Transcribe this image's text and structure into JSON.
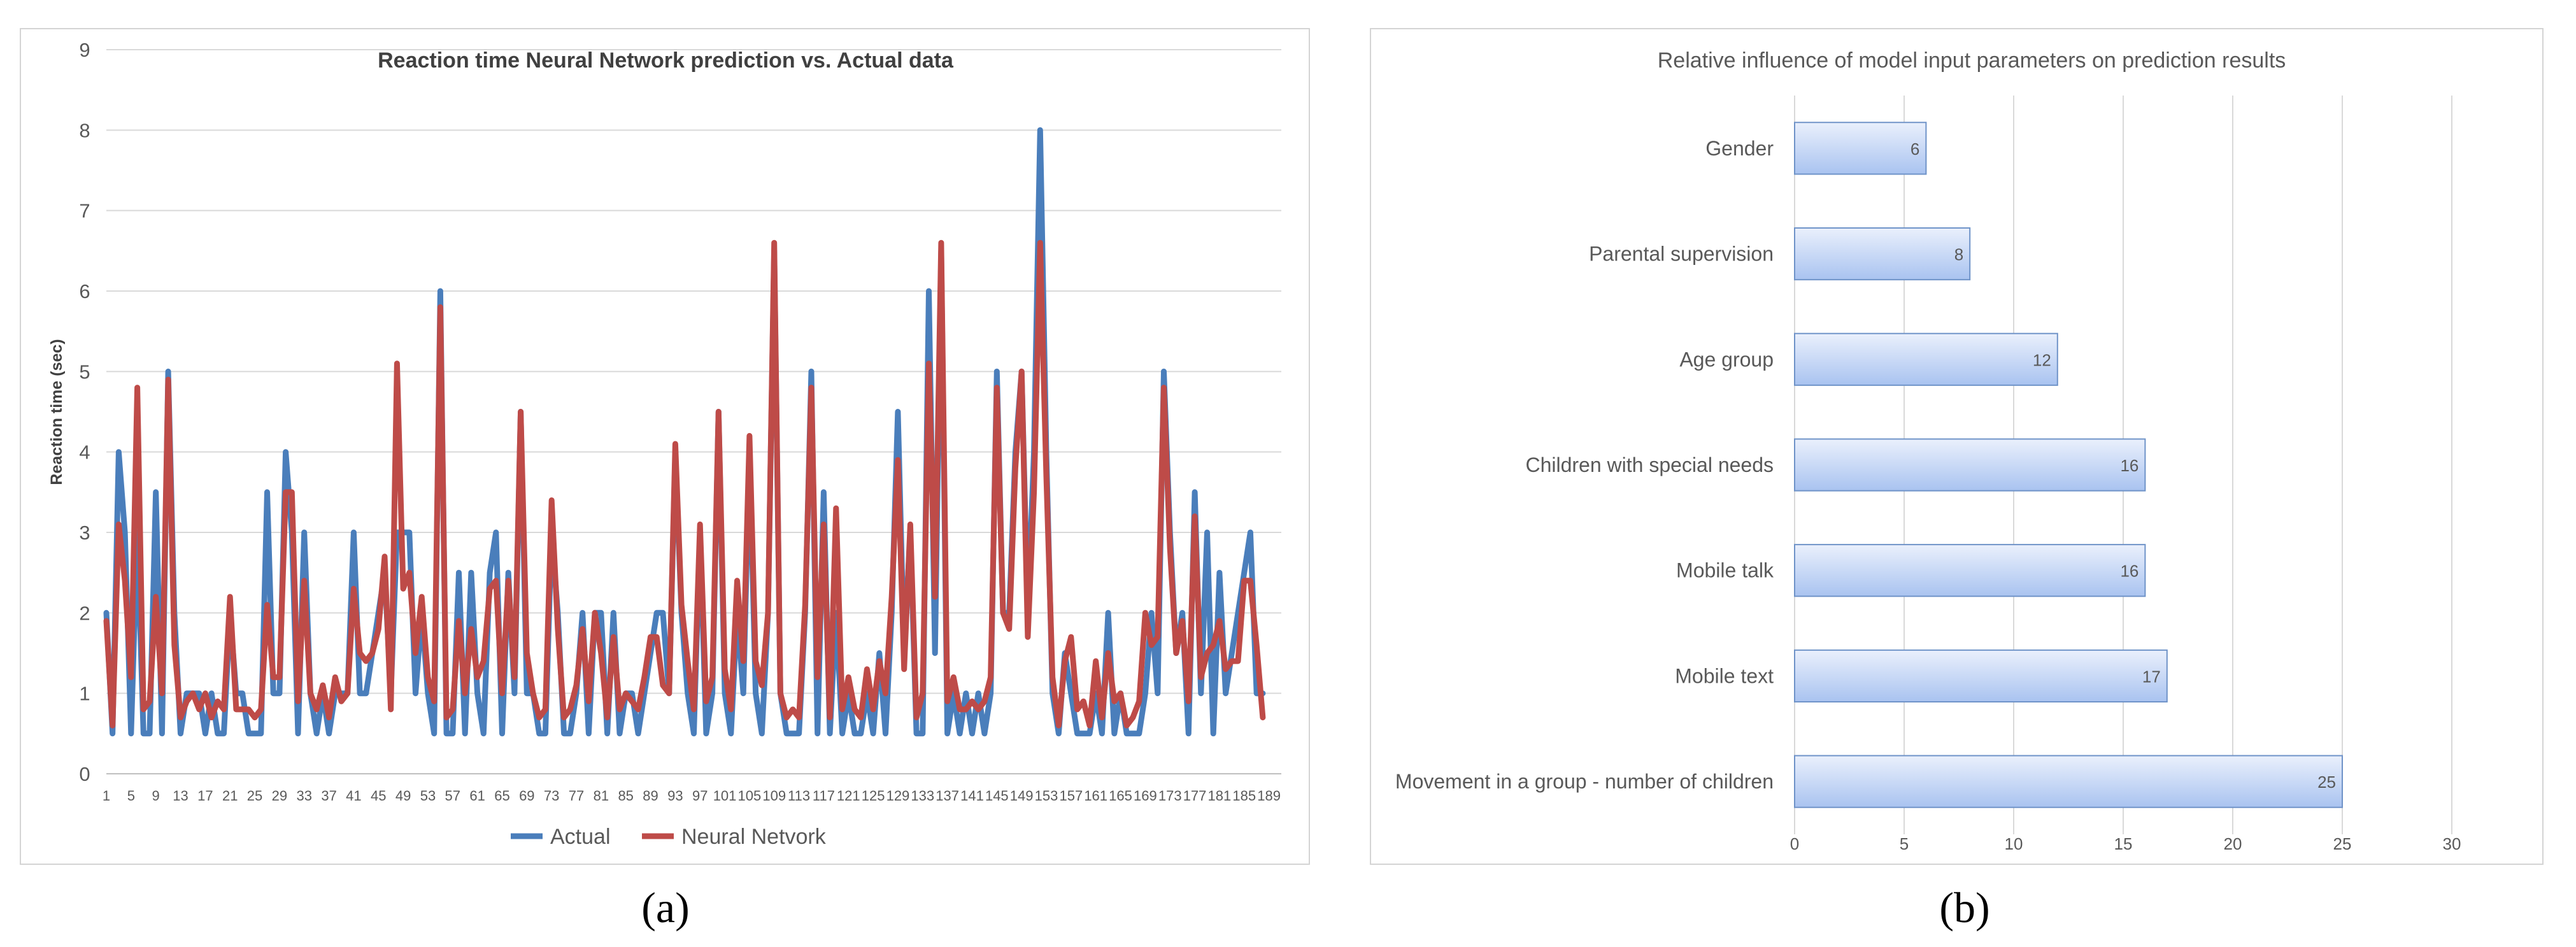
{
  "colors": {
    "actual": "#4A7EBB",
    "neural": "#BE4B48",
    "bar_fill_top": "#EAF0FC",
    "bar_fill_bottom": "#A9C3F0",
    "bar_stroke": "#6F93C8",
    "grid": "#D9D9D9",
    "frame": "#D4D4D4",
    "text": "#595959",
    "title": "#404040"
  },
  "captions": {
    "a": "(a)",
    "b": "(b)"
  },
  "chart_data": [
    {
      "type": "line",
      "title": "Reaction time Neural  Network prediction vs. Actual data",
      "xlabel": "",
      "ylabel": "Reaction time (sec)",
      "ylim": [
        0,
        9
      ],
      "yticks": [
        0,
        1,
        2,
        3,
        4,
        5,
        6,
        7,
        8,
        9
      ],
      "x_start": 1,
      "x_end": 191,
      "x_tick_step": 4,
      "legend": {
        "position": "bottom",
        "items": [
          "Actual",
          "Neural Netvork"
        ]
      },
      "series": [
        {
          "name": "Actual",
          "values": [
            2,
            0.5,
            4,
            3,
            0.5,
            3,
            0.5,
            0.5,
            3.5,
            0.5,
            5,
            2,
            0.5,
            1,
            1,
            1,
            0.5,
            1,
            0.5,
            0.5,
            2,
            1,
            1,
            0.5,
            0.5,
            0.5,
            3.5,
            1,
            1,
            4,
            3,
            0.5,
            3,
            1,
            0.5,
            1,
            0.5,
            1,
            1,
            1,
            3,
            1,
            1,
            1.5,
            2,
            2.5,
            1,
            3,
            3,
            3,
            1,
            2,
            1,
            0.5,
            6,
            0.5,
            0.5,
            2.5,
            0.5,
            2.5,
            1,
            0.5,
            2.5,
            3,
            0.5,
            2.5,
            1,
            4.5,
            1,
            1,
            0.5,
            0.5,
            3,
            2,
            0.5,
            0.5,
            1,
            2,
            0.5,
            2,
            2,
            0.5,
            2,
            0.5,
            1,
            1,
            0.5,
            1,
            1.5,
            2,
            2,
            1,
            4,
            2,
            1,
            0.5,
            3,
            0.5,
            1,
            4.5,
            1,
            0.5,
            2,
            1,
            4,
            1,
            0.5,
            2,
            6.5,
            1,
            0.5,
            0.5,
            0.5,
            2,
            5,
            0.5,
            3.5,
            0.5,
            2,
            0.5,
            1,
            0.5,
            0.5,
            1,
            0.5,
            1.5,
            0.5,
            2,
            4.5,
            1.5,
            3,
            0.5,
            0.5,
            6,
            1.5,
            6.5,
            0.5,
            1,
            0.5,
            1,
            0.5,
            1,
            0.5,
            1,
            5,
            2,
            2,
            4,
            5,
            2,
            4,
            8,
            4,
            1,
            0.5,
            1.5,
            1,
            0.5,
            0.5,
            0.5,
            1,
            0.5,
            2,
            0.5,
            1,
            0.5,
            0.5,
            0.5,
            1,
            2,
            1,
            5,
            3,
            1.5,
            2,
            0.5,
            3.5,
            1,
            3,
            0.5,
            2.5,
            1,
            1.5,
            2,
            2.5,
            3,
            1,
            1
          ],
          "legend_label": "Actual"
        },
        {
          "name": "Neural Netvork",
          "values": [
            1.9,
            0.6,
            3.1,
            2.4,
            1.2,
            4.8,
            0.8,
            0.9,
            2.2,
            1.0,
            4.9,
            1.6,
            0.7,
            0.9,
            1.0,
            0.8,
            1.0,
            0.7,
            0.9,
            0.8,
            2.2,
            0.8,
            0.8,
            0.8,
            0.7,
            0.8,
            2.1,
            1.2,
            1.2,
            3.5,
            3.5,
            0.9,
            2.4,
            1.0,
            0.8,
            1.1,
            0.7,
            1.2,
            0.9,
            1.0,
            2.3,
            1.5,
            1.4,
            1.5,
            1.8,
            2.7,
            0.8,
            5.1,
            2.3,
            2.5,
            1.5,
            2.2,
            1.2,
            0.9,
            5.8,
            0.7,
            0.8,
            1.9,
            1.0,
            1.8,
            1.2,
            1.4,
            2.3,
            2.4,
            1.0,
            2.4,
            1.2,
            4.5,
            1.5,
            1.0,
            0.7,
            0.8,
            3.4,
            1.8,
            0.7,
            0.8,
            1.1,
            1.8,
            0.9,
            2.0,
            1.5,
            0.7,
            1.7,
            0.8,
            1.0,
            0.9,
            0.8,
            1.2,
            1.7,
            1.7,
            1.1,
            1.0,
            4.1,
            2.1,
            1.4,
            0.8,
            3.1,
            0.9,
            1.2,
            4.5,
            1.3,
            0.8,
            2.4,
            1.4,
            4.2,
            1.4,
            1.1,
            2.0,
            6.6,
            1.0,
            0.7,
            0.8,
            0.7,
            2.1,
            4.8,
            1.2,
            3.1,
            0.7,
            3.3,
            0.8,
            1.2,
            0.8,
            0.7,
            1.3,
            0.8,
            1.4,
            1.0,
            2.2,
            3.9,
            1.3,
            3.1,
            0.7,
            1.0,
            5.1,
            2.2,
            6.6,
            0.9,
            1.2,
            0.8,
            0.8,
            0.9,
            0.8,
            0.9,
            1.2,
            4.8,
            2.0,
            1.8,
            3.8,
            5.0,
            1.7,
            3.5,
            6.6,
            3.7,
            1.2,
            0.6,
            1.4,
            1.7,
            0.8,
            0.9,
            0.6,
            1.4,
            0.7,
            1.5,
            0.9,
            1.0,
            0.6,
            0.7,
            0.9,
            2.0,
            1.6,
            1.7,
            4.8,
            2.8,
            1.5,
            1.9,
            0.9,
            3.2,
            1.2,
            1.5,
            1.6,
            1.9,
            1.3,
            1.4,
            1.4,
            2.4,
            2.4,
            1.6,
            0.7
          ],
          "legend_label": "Neural Netvork"
        }
      ]
    },
    {
      "type": "bar",
      "orientation": "horizontal",
      "title": "Relative  influence  of  model  input  parameters  on  prediction  results",
      "xlabel": "",
      "ylabel": "",
      "xlim": [
        0,
        30
      ],
      "xticks": [
        0,
        5,
        10,
        15,
        20,
        25,
        30
      ],
      "categories": [
        "Gender",
        "Parental supervision",
        "Age group",
        "Children with special needs",
        "Mobile talk",
        "Mobile text",
        "Movement in a group - number of children"
      ],
      "values": [
        6,
        8,
        12,
        16,
        16,
        17,
        25
      ],
      "data_labels": [
        "6",
        "8",
        "12",
        "16",
        "16",
        "17",
        "25"
      ]
    }
  ]
}
